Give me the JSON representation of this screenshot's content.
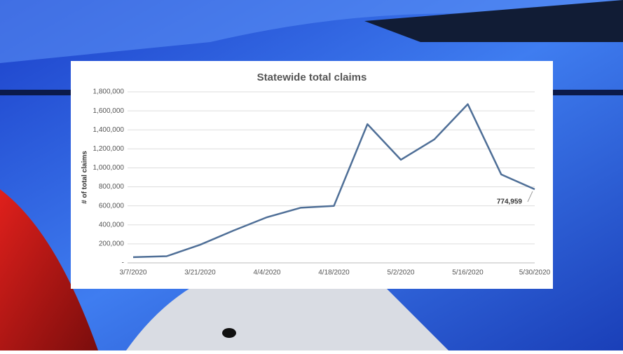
{
  "chart_data": {
    "type": "line",
    "title": "Statewide total claims",
    "y_label": "# of total claims",
    "categories": [
      "3/7/2020",
      null,
      "3/21/2020",
      null,
      "4/4/2020",
      null,
      "4/18/2020",
      null,
      "5/2/2020",
      null,
      "5/16/2020",
      null,
      "5/30/2020"
    ],
    "values": [
      60000,
      70000,
      190000,
      340000,
      480000,
      580000,
      600000,
      1460000,
      1085000,
      1300000,
      1670000,
      930000,
      774959
    ],
    "value_labels": [
      null,
      null,
      null,
      null,
      null,
      null,
      null,
      null,
      null,
      null,
      null,
      null,
      "774,959"
    ],
    "color": "#4f6f97",
    "ylim": [
      0,
      1800000
    ],
    "yticks": [
      {
        "value": 0,
        "label": "-"
      },
      {
        "value": 200000,
        "label": "200,000"
      },
      {
        "value": 400000,
        "label": "400,000"
      },
      {
        "value": 600000,
        "label": "600,000"
      },
      {
        "value": 800000,
        "label": "800,000"
      },
      {
        "value": 1000000,
        "label": "1,000,000"
      },
      {
        "value": 1200000,
        "label": "1,200,000"
      },
      {
        "value": 1400000,
        "label": "1,400,000"
      },
      {
        "value": 1600000,
        "label": "1,600,000"
      },
      {
        "value": 1800000,
        "label": "1,800,000"
      }
    ],
    "grid": true
  }
}
